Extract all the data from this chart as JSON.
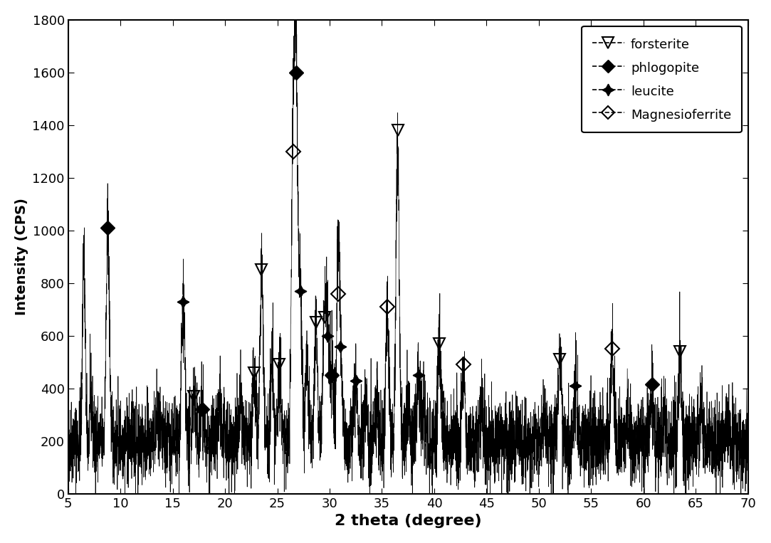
{
  "xlim": [
    5,
    70
  ],
  "ylim": [
    0,
    1800
  ],
  "xticks": [
    5,
    10,
    15,
    20,
    25,
    30,
    35,
    40,
    45,
    50,
    55,
    60,
    65,
    70
  ],
  "yticks": [
    0,
    200,
    400,
    600,
    800,
    1000,
    1200,
    1400,
    1600,
    1800
  ],
  "xlabel": "2 theta (degree)",
  "ylabel": "Intensity (CPS)",
  "background_color": "#ffffff",
  "line_color": "#000000",
  "forsterite_peaks": [
    [
      17.0,
      370
    ],
    [
      22.8,
      460
    ],
    [
      23.5,
      850
    ],
    [
      25.2,
      490
    ],
    [
      28.7,
      650
    ],
    [
      29.5,
      670
    ],
    [
      36.5,
      1380
    ],
    [
      40.5,
      570
    ],
    [
      52.0,
      510
    ],
    [
      63.5,
      540
    ]
  ],
  "phlogopite_peaks": [
    [
      8.8,
      1010
    ],
    [
      17.8,
      320
    ],
    [
      26.8,
      1600
    ],
    [
      30.2,
      450
    ],
    [
      60.8,
      415
    ]
  ],
  "leucite_peaks": [
    [
      16.0,
      730
    ],
    [
      27.2,
      770
    ],
    [
      29.8,
      600
    ],
    [
      31.0,
      560
    ],
    [
      32.5,
      430
    ],
    [
      38.5,
      450
    ],
    [
      53.5,
      410
    ]
  ],
  "magnesioferrite_peaks": [
    [
      26.5,
      1300
    ],
    [
      30.8,
      760
    ],
    [
      35.5,
      710
    ],
    [
      42.8,
      490
    ],
    [
      57.0,
      550
    ]
  ],
  "noise_base": 200,
  "noise_amplitude": 80,
  "seed": 42
}
